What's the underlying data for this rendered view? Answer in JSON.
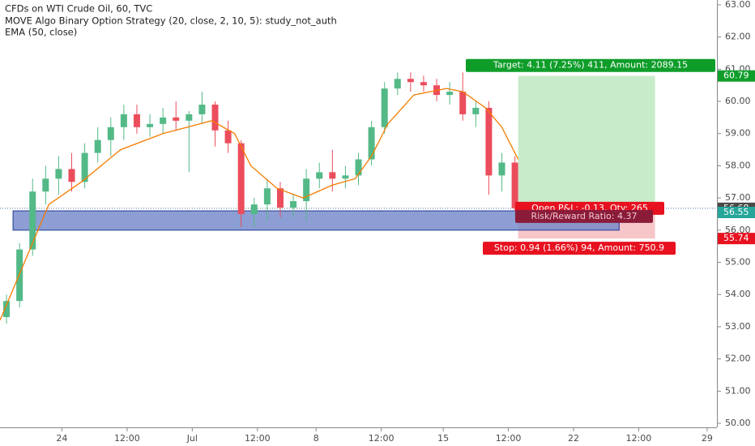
{
  "chart_data": {
    "type": "candlestick",
    "title": "CFDs on WTI Crude Oil, 60, TVC",
    "indicator_lines": [
      "MOVE Algo Binary Option Strategy (20, close, 2, 10, 5): study_not_auth",
      "EMA (50, close)"
    ],
    "xlim": [
      0,
      220
    ],
    "ylim": [
      49.9,
      63.15
    ],
    "xticks": [
      {
        "value": 19,
        "label": "24"
      },
      {
        "value": 39,
        "label": "12:00"
      },
      {
        "value": 59,
        "label": "Jul"
      },
      {
        "value": 79,
        "label": "12:00"
      },
      {
        "value": 97,
        "label": "8"
      },
      {
        "value": 117,
        "label": "12:00"
      },
      {
        "value": 136,
        "label": "15"
      },
      {
        "value": 156,
        "label": "12:00"
      },
      {
        "value": 176,
        "label": "22"
      },
      {
        "value": 196,
        "label": "12:00"
      },
      {
        "value": 217,
        "label": "29"
      }
    ],
    "yticks": [
      {
        "value": 50,
        "label": "50.00"
      },
      {
        "value": 51,
        "label": "51.00"
      },
      {
        "value": 52,
        "label": "52.00"
      },
      {
        "value": 53,
        "label": "53.00"
      },
      {
        "value": 54,
        "label": "54.00"
      },
      {
        "value": 55,
        "label": "55.00"
      },
      {
        "value": 56,
        "label": "56.00"
      },
      {
        "value": 57,
        "label": "57.00"
      },
      {
        "value": 58,
        "label": "58.00"
      },
      {
        "value": 59,
        "label": "59.00"
      },
      {
        "value": 60,
        "label": "60.00"
      },
      {
        "value": 61,
        "label": "61.00"
      },
      {
        "value": 62,
        "label": "62.00"
      },
      {
        "value": 63,
        "label": "63.00"
      }
    ],
    "up_color": "#53b987",
    "down_color": "#eb4d5c",
    "x": [
      2,
      6,
      10,
      14,
      18,
      22,
      26,
      30,
      34,
      38,
      42,
      46,
      50,
      54,
      58,
      62,
      66,
      70,
      74,
      78,
      82,
      86,
      90,
      94,
      98,
      102,
      106,
      110,
      114,
      118,
      122,
      126,
      130,
      134,
      138,
      142,
      146,
      150,
      154,
      158
    ],
    "open": [
      53.3,
      53.8,
      55.4,
      57.2,
      57.6,
      57.9,
      57.5,
      58.4,
      58.8,
      59.2,
      59.6,
      59.2,
      59.3,
      59.5,
      59.4,
      59.6,
      59.9,
      59.1,
      58.7,
      56.5,
      56.8,
      57.3,
      56.7,
      56.9,
      57.6,
      57.8,
      57.6,
      57.7,
      58.2,
      59.2,
      60.4,
      60.7,
      60.6,
      60.5,
      60.2,
      60.3,
      59.6,
      59.8,
      57.7,
      58.1
    ],
    "high": [
      54.0,
      55.6,
      57.6,
      58.0,
      58.3,
      58.4,
      58.7,
      59.2,
      59.5,
      59.9,
      59.9,
      59.6,
      59.8,
      60.0,
      59.7,
      60.3,
      60.0,
      59.4,
      58.8,
      57.0,
      57.6,
      57.5,
      57.1,
      57.9,
      58.1,
      58.5,
      58.0,
      58.4,
      59.4,
      60.6,
      60.9,
      60.9,
      60.8,
      60.7,
      60.6,
      60.9,
      60.0,
      60.0,
      58.4,
      58.3
    ],
    "low": [
      53.1,
      53.6,
      55.2,
      56.8,
      57.1,
      57.2,
      57.3,
      58.1,
      58.3,
      58.8,
      59.0,
      58.9,
      59.0,
      59.1,
      57.8,
      59.3,
      58.6,
      58.4,
      56.1,
      56.1,
      56.3,
      56.4,
      56.4,
      56.3,
      57.3,
      57.2,
      57.3,
      57.4,
      58.0,
      59.0,
      60.2,
      60.3,
      60.3,
      60.0,
      59.9,
      59.4,
      59.2,
      57.1,
      57.2,
      56.6
    ],
    "close": [
      53.8,
      55.4,
      57.2,
      57.6,
      57.9,
      57.5,
      58.4,
      58.8,
      59.2,
      59.6,
      59.2,
      59.3,
      59.5,
      59.4,
      59.6,
      59.9,
      59.1,
      58.7,
      56.5,
      56.8,
      57.3,
      56.7,
      56.9,
      57.6,
      57.8,
      57.6,
      57.7,
      58.2,
      59.2,
      60.4,
      60.7,
      60.6,
      60.5,
      60.2,
      60.3,
      59.6,
      59.8,
      57.7,
      58.1,
      56.68
    ],
    "ema": {
      "color": "#f57c00",
      "x": [
        0,
        7.5,
        15,
        25,
        37,
        50,
        65,
        72,
        77,
        85,
        93,
        102,
        109,
        114,
        119,
        127,
        137,
        142,
        149,
        154,
        159
      ],
      "values": [
        53.2,
        55.0,
        56.8,
        57.5,
        58.5,
        59.0,
        59.4,
        59.0,
        58.0,
        57.3,
        57.0,
        57.4,
        57.6,
        58.3,
        59.3,
        60.2,
        60.4,
        60.3,
        59.8,
        59.2,
        58.2
      ]
    },
    "zone": {
      "x": [
        4,
        190
      ],
      "low": 56.0,
      "high": 56.6,
      "color": "#6f86c8"
    },
    "position": {
      "x": [
        159,
        201
      ],
      "entry": 56.68,
      "target": 60.79,
      "stop": 55.74,
      "target_label": "Target: 4.11 (7.25%) 411, Amount: 2089.15",
      "pnl_label": "Open P&L: -0.13, Qty: 265",
      "rr_label": "Risk/Reward Ratio: 4.37",
      "stop_label": "Stop: 0.94 (1.66%) 94, Amount: 750.9"
    },
    "price_badges": [
      {
        "value": 60.79,
        "color": "#0f9d2a"
      },
      {
        "value": 56.68,
        "color": "#4a4a4a"
      },
      {
        "value": 56.55,
        "color": "#26a69a"
      },
      {
        "value": 55.74,
        "color": "#e8111f"
      }
    ]
  }
}
